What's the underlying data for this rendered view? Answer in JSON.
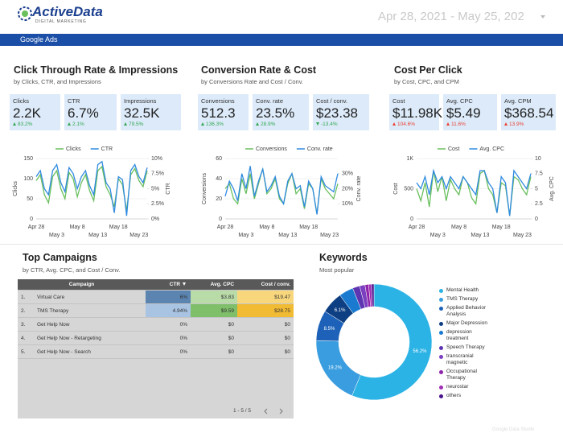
{
  "header": {
    "logo": "ActiveData",
    "logo_subtitle": "DIGITAL MARKETING",
    "date_range": "Apr 28, 2021 - May 25, 202",
    "tab": "Google Ads"
  },
  "sections": [
    {
      "title": "Click Through Rate & Impressions",
      "subtitle": "by Clicks, CTR, and Impressions",
      "kpis": [
        {
          "label": "Clicks",
          "value": "2.2K",
          "delta": "83.2%",
          "direction": "up",
          "color": "#34a853"
        },
        {
          "label": "CTR",
          "value": "6.7%",
          "delta": "2.1%",
          "direction": "up",
          "color": "#34a853"
        },
        {
          "label": "Impressions",
          "value": "32.5K",
          "delta": "79.5%",
          "direction": "up",
          "color": "#34a853"
        }
      ]
    },
    {
      "title": "Conversion Rate & Cost",
      "subtitle": "by Conversions Rate and Cost / Conv.",
      "kpis": [
        {
          "label": "Conversions",
          "value": "512.3",
          "delta": "136.3%",
          "direction": "up",
          "color": "#34a853"
        },
        {
          "label": "Conv. rate",
          "value": "23.5%",
          "delta": "28.9%",
          "direction": "up",
          "color": "#34a853"
        },
        {
          "label": "Cost / conv.",
          "value": "$23.38",
          "delta": "-13.4%",
          "direction": "down",
          "color": "#34a853"
        }
      ]
    },
    {
      "title": "Cost Per Click",
      "subtitle": "by Cost, CPC, and CPM",
      "kpis": [
        {
          "label": "Cost",
          "value": "$11.98K",
          "delta": "104.6%",
          "direction": "up",
          "color": "#ea4335"
        },
        {
          "label": "Avg. CPC",
          "value": "$5.49",
          "delta": "11.6%",
          "direction": "up",
          "color": "#ea4335"
        },
        {
          "label": "Avg. CPM",
          "value": "$368.54",
          "delta": "13.9%",
          "direction": "up",
          "color": "#ea4335"
        }
      ]
    }
  ],
  "chart_data": [
    {
      "type": "line",
      "categories": [
        "Apr 28",
        null,
        null,
        null,
        null,
        "May 3",
        null,
        null,
        null,
        null,
        "May 8",
        null,
        null,
        null,
        null,
        "May 13",
        null,
        null,
        null,
        null,
        "May 18",
        null,
        null,
        null,
        null,
        "May 23",
        null,
        null
      ],
      "series": [
        {
          "name": "Clicks",
          "color": "#6abf5e",
          "values": [
            95,
            110,
            60,
            40,
            105,
            120,
            75,
            50,
            115,
            100,
            55,
            90,
            110,
            70,
            45,
            120,
            130,
            80,
            60,
            30,
            100,
            85,
            20,
            110,
            125,
            95,
            80,
            120
          ]
        },
        {
          "name": "CTR",
          "color": "#2f8ae0",
          "axis": "y2",
          "values": [
            7,
            8,
            5,
            4,
            8,
            9,
            6,
            4.5,
            8.5,
            7.5,
            5,
            7,
            8,
            5.5,
            4,
            9,
            9.5,
            6,
            5,
            1,
            7,
            6.5,
            0.5,
            8,
            9,
            7,
            6,
            8.5
          ]
        }
      ],
      "ylim": [
        0,
        150
      ],
      "yticks": [
        0,
        50,
        100,
        150
      ],
      "y2lim": [
        0,
        10
      ],
      "y2ticks": [
        {
          "value": 0,
          "label": "0%"
        },
        {
          "value": 2.5,
          "label": "2.5%"
        },
        {
          "value": 5,
          "label": "5%"
        },
        {
          "value": 7.5,
          "label": "7.5%"
        },
        {
          "value": 10,
          "label": "10%"
        }
      ],
      "ylabel": "Clicks",
      "y2label": "CTR",
      "grid": true
    },
    {
      "type": "line",
      "categories": [
        "Apr 28",
        null,
        null,
        null,
        null,
        "May 3",
        null,
        null,
        null,
        null,
        "May 8",
        null,
        null,
        null,
        null,
        "May 13",
        null,
        null,
        null,
        null,
        "May 18",
        null,
        null,
        null,
        null,
        "May 23",
        null,
        null
      ],
      "series": [
        {
          "name": "Conversions",
          "color": "#6abf5e",
          "values": [
            30,
            35,
            20,
            15,
            40,
            25,
            45,
            20,
            35,
            50,
            25,
            30,
            40,
            20,
            15,
            35,
            45,
            25,
            30,
            10,
            35,
            30,
            5,
            40,
            30,
            25,
            20,
            35
          ]
        },
        {
          "name": "Conv. rate",
          "color": "#2f8ae0",
          "axis": "y2",
          "values": [
            15,
            25,
            20,
            12,
            30,
            20,
            35,
            15,
            25,
            33,
            18,
            22,
            28,
            15,
            10,
            25,
            30,
            20,
            22,
            8,
            25,
            20,
            3,
            28,
            22,
            20,
            18,
            30
          ]
        }
      ],
      "ylim": [
        0,
        60
      ],
      "yticks": [
        0,
        20,
        40,
        60
      ],
      "y2lim": [
        0,
        40
      ],
      "y2ticks": [
        {
          "value": 10,
          "label": "10%"
        },
        {
          "value": 20,
          "label": "20%"
        },
        {
          "value": 30,
          "label": "30%"
        }
      ],
      "ylabel": "Conversions",
      "y2label": "Conv. rate",
      "grid": true
    },
    {
      "type": "line",
      "categories": [
        "Apr 28",
        null,
        null,
        null,
        null,
        "May 3",
        null,
        null,
        null,
        null,
        "May 8",
        null,
        null,
        null,
        null,
        "May 13",
        null,
        null,
        null,
        null,
        "May 18",
        null,
        null,
        null,
        null,
        "May 23",
        null,
        null
      ],
      "series": [
        {
          "name": "Cost",
          "color": "#6abf5e",
          "values": [
            500,
            300,
            600,
            200,
            800,
            450,
            700,
            300,
            650,
            500,
            400,
            700,
            600,
            350,
            250,
            750,
            800,
            500,
            400,
            100,
            600,
            550,
            50,
            700,
            650,
            500,
            400,
            700
          ]
        },
        {
          "name": "Avg. CPC",
          "color": "#2f8ae0",
          "axis": "y2",
          "values": [
            6,
            5,
            7,
            4,
            8,
            6,
            7,
            5,
            7,
            6,
            5,
            7,
            6,
            5,
            4,
            8,
            8,
            6,
            5,
            1,
            7,
            6,
            0.5,
            8,
            7,
            6,
            5,
            7.5
          ]
        }
      ],
      "ylim": [
        0,
        1000
      ],
      "yticks": [
        0,
        500,
        {
          "value": 1000,
          "label": "1K"
        }
      ],
      "y2lim": [
        0,
        10
      ],
      "y2ticks": [
        0,
        2.5,
        5,
        7.5,
        10
      ],
      "ylabel": "Cost",
      "y2label": "Avg. CPC",
      "grid": true
    },
    {
      "type": "pie",
      "title": "Keywords",
      "subtitle": "Most popular",
      "categories": [
        "Mental Health",
        "TMS Therapy",
        "Applied Behavior Analysis",
        "Major Depression",
        "depression treatment",
        "Speech Therapy",
        "transcranial magnetic",
        "Occupational Therapy",
        "neurostar",
        "others"
      ],
      "values": [
        56.2,
        19.2,
        8.5,
        6.1,
        4.0,
        2.0,
        1.5,
        1.0,
        0.8,
        0.7
      ],
      "value_labels": [
        "56.2%",
        "19.2%",
        "8.5%",
        "6.1%",
        null,
        null,
        null,
        null,
        null,
        null
      ],
      "colors": [
        "#2bb3e6",
        "#3a9de0",
        "#1d62b8",
        "#0e3f82",
        "#1a7ad0",
        "#5e35b1",
        "#7b3fc0",
        "#8e24aa",
        "#a12fb5",
        "#4a148c"
      ]
    }
  ],
  "campaigns": {
    "title": "Top Campaigns",
    "subtitle": "by CTR, Avg. CPC, and Cost / Conv.",
    "columns": [
      "Campaign",
      "CTR",
      "Avg. CPC",
      "Cost / conv."
    ],
    "rows": [
      [
        "1.",
        "Virtual Care",
        "6%",
        "$3.83",
        "$19.47"
      ],
      [
        "2.",
        "TMS Therapy",
        "4.94%",
        "$9.59",
        "$28.75"
      ],
      [
        "3.",
        "Get Help Now",
        "0%",
        "$0",
        "$0"
      ],
      [
        "4.",
        "Get Help Now - Retargeting",
        "0%",
        "$0",
        "$0"
      ],
      [
        "5.",
        "Get Help Now - Search",
        "0%",
        "$0",
        "$0"
      ]
    ],
    "cell_colors": [
      [
        null,
        null,
        "#5b84b1",
        "#b9dba8",
        "#f8d77c"
      ],
      [
        null,
        null,
        "#a9c4e2",
        "#7fbf6a",
        "#f2bb34"
      ],
      [
        null,
        null,
        null,
        null,
        null
      ],
      [
        null,
        null,
        null,
        null,
        null
      ],
      [
        null,
        null,
        null,
        null,
        null
      ]
    ],
    "pagination": "1 - 5 / 5"
  },
  "footer": "Google Data Studio"
}
